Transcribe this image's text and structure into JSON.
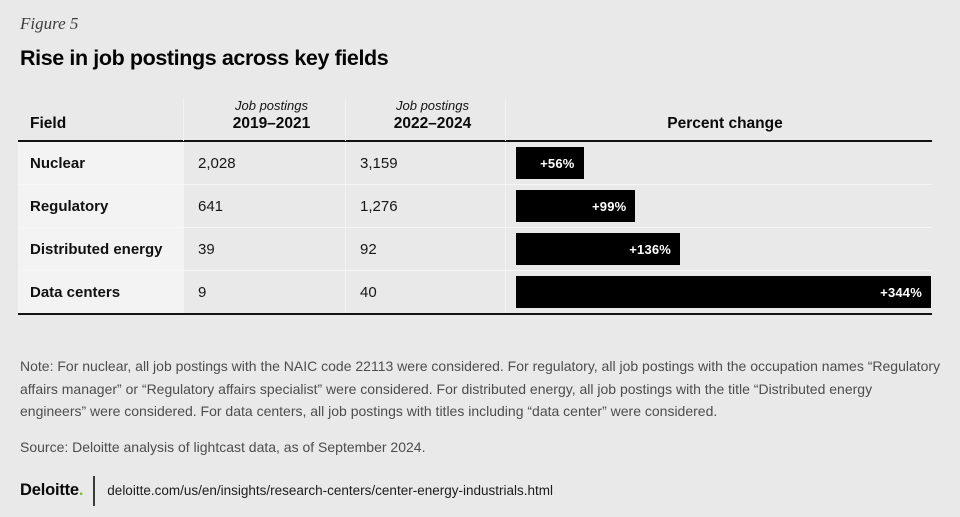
{
  "figure_label": "Figure 5",
  "title": "Rise in job postings across key fields",
  "table": {
    "bar_max": 344,
    "columns": {
      "field": "Field",
      "col2_sub": "Job postings",
      "col2_main": "2019–2021",
      "col3_sub": "Job postings",
      "col3_main": "2022–2024",
      "col4": "Percent change"
    },
    "rows": [
      {
        "field": "Nuclear",
        "postings_2019_2021": "2,028",
        "postings_2022_2024": "3,159",
        "pct": 56,
        "pct_label": "+56%"
      },
      {
        "field": "Regulatory",
        "postings_2019_2021": "641",
        "postings_2022_2024": "1,276",
        "pct": 99,
        "pct_label": "+99%"
      },
      {
        "field": "Distributed energy",
        "postings_2019_2021": "39",
        "postings_2022_2024": "92",
        "pct": 136,
        "pct_label": "+136%"
      },
      {
        "field": "Data centers",
        "postings_2019_2021": "9",
        "postings_2022_2024": "40",
        "pct": 344,
        "pct_label": "+344%"
      }
    ]
  },
  "note": "Note: For nuclear, all job postings with the NAIC code 22113 were considered. For regulatory, all job postings with the occupation names “Regulatory affairs manager” or “Regulatory affairs specialist” were considered. For distributed energy, all job postings with the title “Distributed energy engineers” were considered. For data centers, all job postings with titles including “data center” were considered.",
  "source": "Source: Deloitte analysis of lightcast data, as of September 2024.",
  "footer": {
    "brand": "Deloitte",
    "brand_dot": ".",
    "url": "deloitte.com/us/en/insights/research-centers/center-energy-industrials.html"
  },
  "colors": {
    "background": "#e9e9e9",
    "field_column_bg": "#f3f3f3",
    "bar_fill": "#000000",
    "bar_label": "#ffffff",
    "header_rule": "#131313",
    "row_divider": "#f6f6f6",
    "note_text": "#4d4d4d",
    "deloitte_green": "#86bc25"
  },
  "chart_data": {
    "type": "bar",
    "title": "Rise in job postings across key fields",
    "categories": [
      "Nuclear",
      "Regulatory",
      "Distributed energy",
      "Data centers"
    ],
    "series": [
      {
        "name": "Job postings 2019–2021",
        "values": [
          2028,
          641,
          39,
          9
        ]
      },
      {
        "name": "Job postings 2022–2024",
        "values": [
          3159,
          1276,
          92,
          40
        ]
      },
      {
        "name": "Percent change",
        "values": [
          56,
          99,
          136,
          344
        ]
      }
    ],
    "bar_series_shown_as_bars": "Percent change",
    "bar_value_labels": [
      "+56%",
      "+99%",
      "+136%",
      "+344%"
    ],
    "xlabel": "",
    "ylabel": "",
    "xlim": [
      0,
      344
    ],
    "grid": false,
    "legend_position": "none",
    "orientation": "horizontal"
  }
}
